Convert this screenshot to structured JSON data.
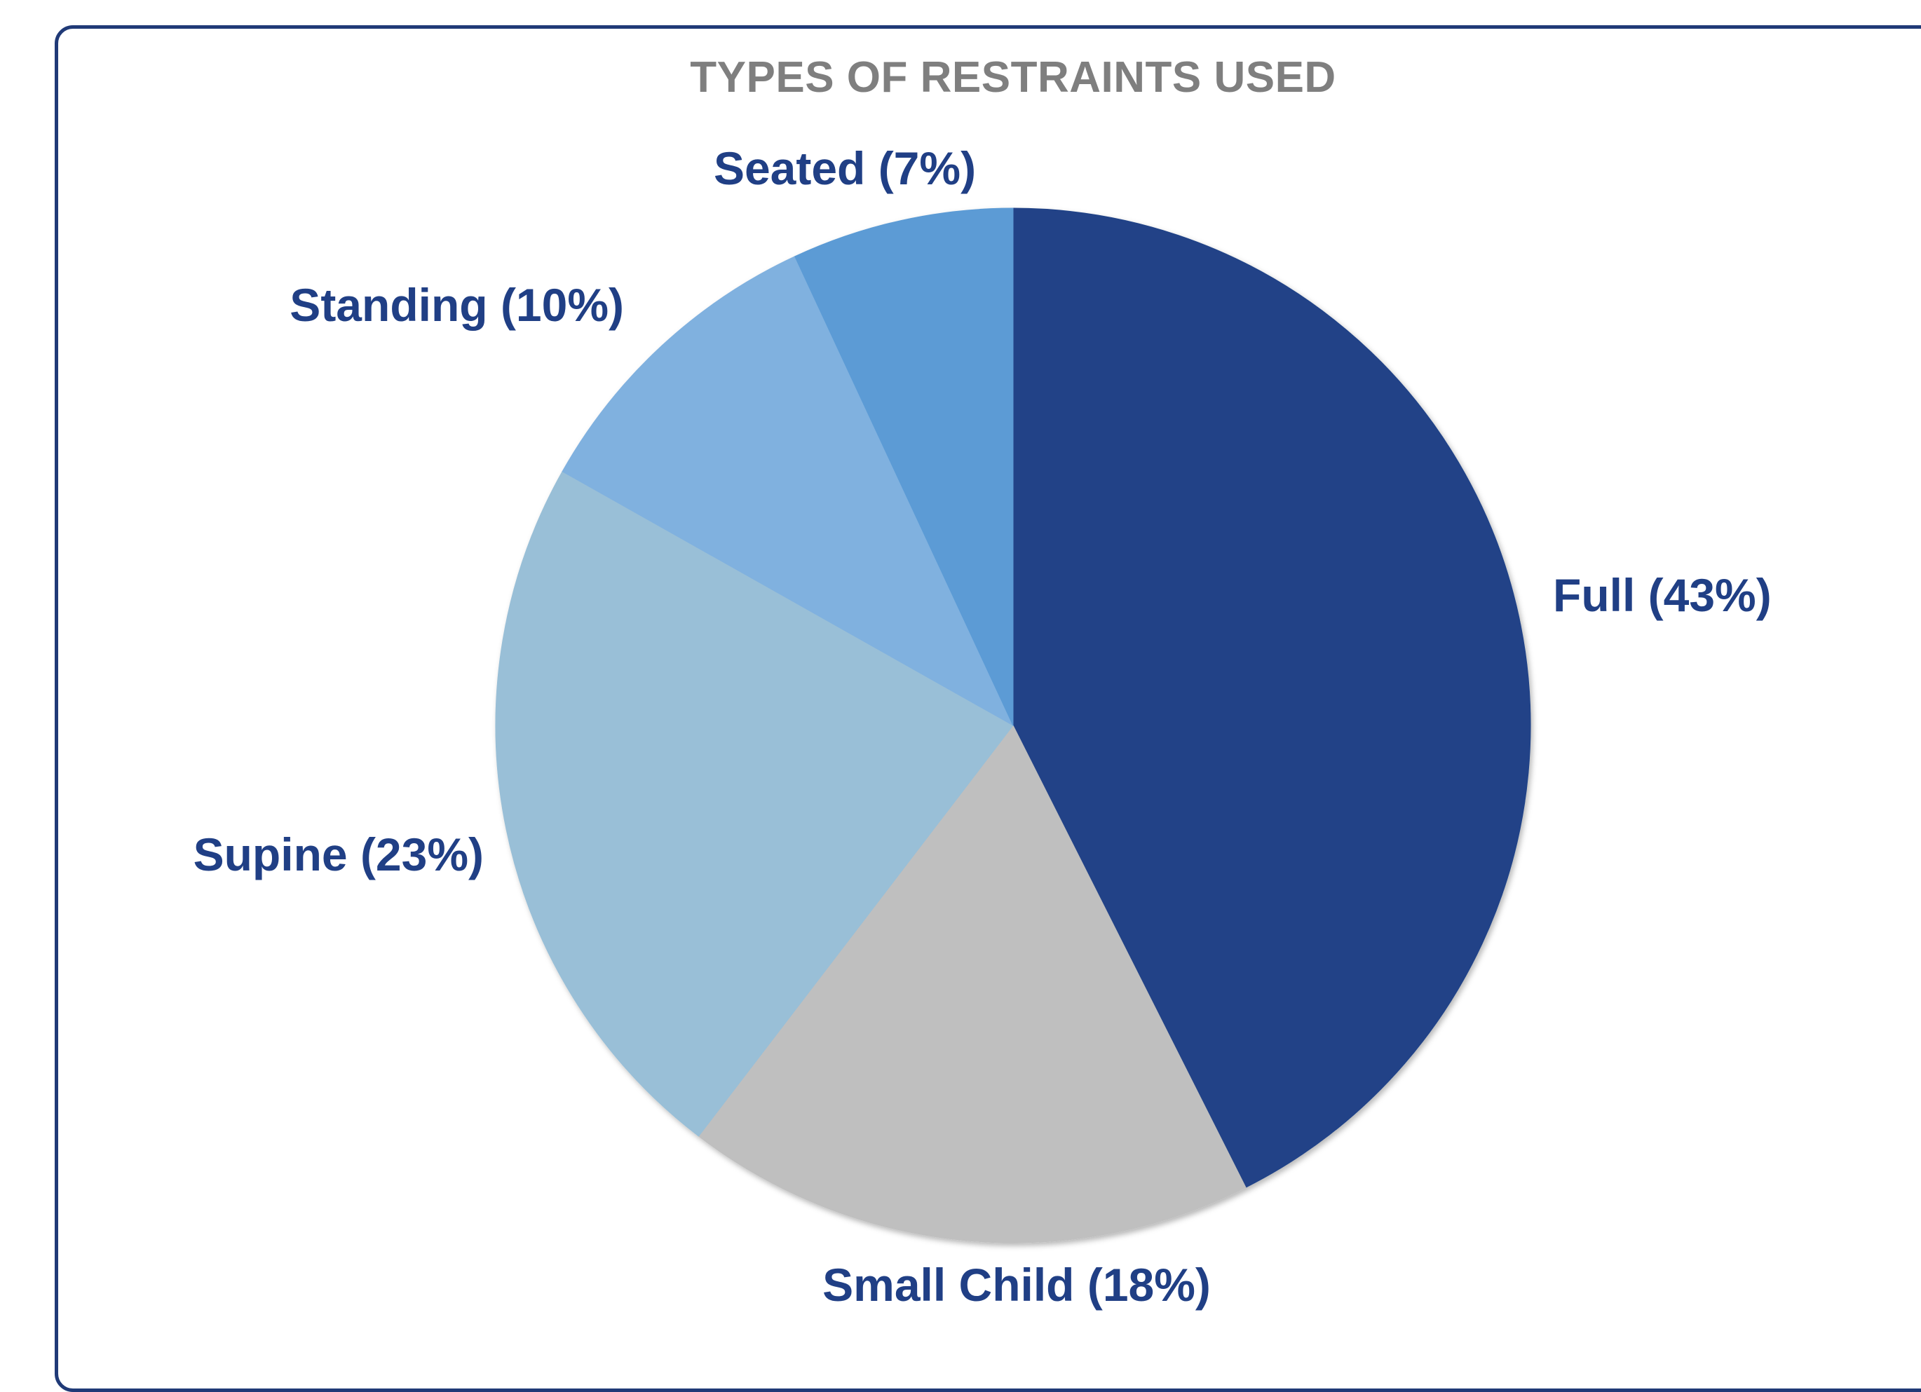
{
  "chart_data": {
    "type": "pie",
    "title": "TYPES OF RESTRAINTS USED",
    "slices": [
      {
        "name": "Full",
        "value": 43,
        "label": "Full (43%)",
        "color": "#204387"
      },
      {
        "name": "Small Child",
        "value": 18,
        "label": "Small Child (18%)",
        "color": "#bfbfbf"
      },
      {
        "name": "Supine",
        "value": 23,
        "label": "Supine (23%)",
        "color": "#99bfd7"
      },
      {
        "name": "Standing",
        "value": 10,
        "label": "Standing (10%)",
        "color": "#80b1df"
      },
      {
        "name": "Seated",
        "value": 7,
        "label": "Seated (7%)",
        "color": "#5b9bd5"
      }
    ],
    "start_angle": "12 o'clock",
    "direction": "clockwise",
    "legend": "none",
    "frame_color": "#203a77",
    "title_color": "#7f7f7f",
    "label_color": "#203f85"
  }
}
